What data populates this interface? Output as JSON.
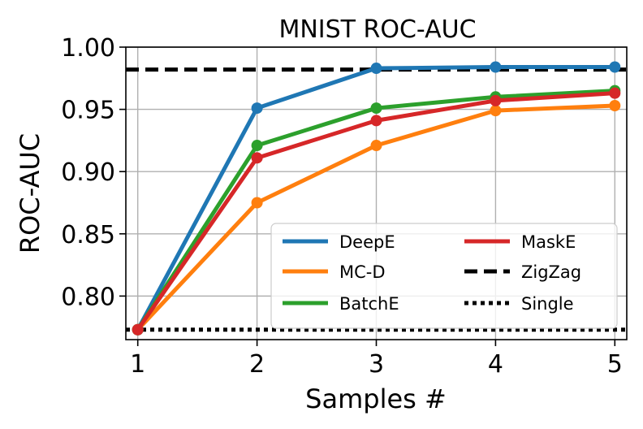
{
  "chart_data": {
    "type": "line",
    "title": "MNIST ROC-AUC",
    "xlabel": "Samples #",
    "ylabel": "ROC-AUC",
    "x": [
      1,
      2,
      3,
      4,
      5
    ],
    "xlim": [
      0.9,
      5.1
    ],
    "ylim": [
      0.765,
      1.0
    ],
    "xticks": [
      1,
      2,
      3,
      4,
      5
    ],
    "xtick_labels": [
      "1",
      "2",
      "3",
      "4",
      "5"
    ],
    "yticks": [
      0.8,
      0.85,
      0.9,
      0.95,
      1.0
    ],
    "ytick_labels": [
      "0.80",
      "0.85",
      "0.90",
      "0.95",
      "1.00"
    ],
    "grid": true,
    "legend_position": "lower-right",
    "series": [
      {
        "name": "DeepE",
        "color": "#1f77b4",
        "style": "solid",
        "markers": true,
        "values": [
          0.773,
          0.951,
          0.983,
          0.984,
          0.984
        ]
      },
      {
        "name": "MC-D",
        "color": "#ff7f0e",
        "style": "solid",
        "markers": true,
        "values": [
          0.773,
          0.875,
          0.921,
          0.949,
          0.953
        ]
      },
      {
        "name": "BatchE",
        "color": "#2ca02c",
        "style": "solid",
        "markers": true,
        "values": [
          0.773,
          0.921,
          0.951,
          0.96,
          0.965
        ]
      },
      {
        "name": "MaskE",
        "color": "#d62728",
        "style": "solid",
        "markers": true,
        "values": [
          0.773,
          0.911,
          0.941,
          0.957,
          0.963
        ]
      },
      {
        "name": "ZigZag",
        "color": "#000000",
        "style": "dashed",
        "markers": false,
        "values": [
          0.982,
          0.982,
          0.982,
          0.982,
          0.982
        ]
      },
      {
        "name": "Single",
        "color": "#000000",
        "style": "dotted",
        "markers": false,
        "values": [
          0.773,
          0.773,
          0.773,
          0.773,
          0.773
        ]
      }
    ]
  }
}
